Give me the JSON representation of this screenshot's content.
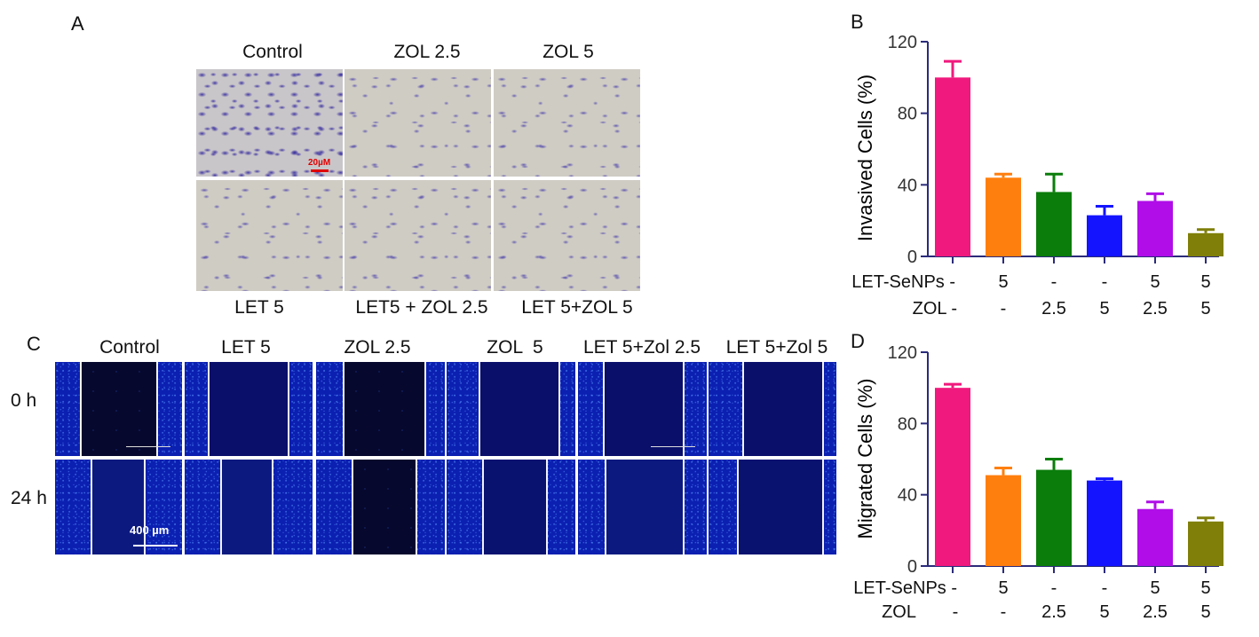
{
  "panels": {
    "A": {
      "letter": "A",
      "col_labels_top": [
        "Control",
        "ZOL 2.5",
        "ZOL 5"
      ],
      "col_labels_bottom": [
        "LET 5",
        "LET5 + ZOL 2.5",
        "LET 5+ZOL 5"
      ],
      "scale_bar": "20µM"
    },
    "B": {
      "letter": "B"
    },
    "C": {
      "letter": "C",
      "col_labels": [
        "Control",
        "LET 5",
        "ZOL 2.5",
        "ZOL  5",
        "LET 5+Zol 2.5",
        "LET 5+Zol 5"
      ],
      "row_labels": [
        "0 h",
        "24 h"
      ],
      "scale_bar": "400 µm"
    },
    "D": {
      "letter": "D"
    }
  },
  "chart_data": [
    {
      "type": "bar",
      "panel": "B",
      "ylabel": "Invasived Cells (%)",
      "ylim": [
        0,
        120
      ],
      "yticks": [
        "0",
        "40",
        "80",
        "120"
      ],
      "categories": [
        "1",
        "2",
        "3",
        "4",
        "5",
        "6"
      ],
      "values": [
        100,
        44,
        36,
        23,
        31,
        13
      ],
      "errors": [
        9,
        2,
        10,
        5,
        4,
        2
      ],
      "colors": [
        "#f0197d",
        "#ff7f0e",
        "#0a7d0a",
        "#1414ff",
        "#b00de8",
        "#7f7f0a"
      ],
      "conditions": [
        {
          "label": "LET-SeNPs -",
          "values": [
            "",
            "5",
            "-",
            "-",
            "5",
            "5"
          ]
        },
        {
          "label": "ZOL -",
          "values": [
            "",
            "-",
            "2.5",
            "5",
            "2.5",
            "5"
          ]
        }
      ]
    },
    {
      "type": "bar",
      "panel": "D",
      "ylabel": "Migrated Cells (%)",
      "ylim": [
        0,
        120
      ],
      "yticks": [
        "0",
        "40",
        "80",
        "120"
      ],
      "categories": [
        "1",
        "2",
        "3",
        "4",
        "5",
        "6"
      ],
      "values": [
        100,
        51,
        54,
        48,
        32,
        25
      ],
      "errors": [
        2,
        4,
        6,
        1,
        4,
        2
      ],
      "colors": [
        "#f0197d",
        "#ff7f0e",
        "#0a7d0a",
        "#1414ff",
        "#b00de8",
        "#7f7f0a"
      ],
      "conditions": [
        {
          "label": "LET-SeNPs -",
          "values": [
            "",
            "5",
            "-",
            "-",
            "5",
            "5"
          ]
        },
        {
          "label": "ZOL",
          "values": [
            "-",
            "-",
            "2.5",
            "5",
            "2.5",
            "5"
          ]
        }
      ]
    }
  ]
}
